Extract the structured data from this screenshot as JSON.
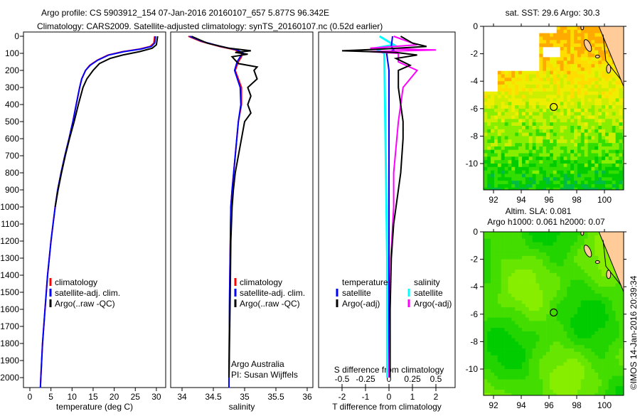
{
  "title": {
    "line1": "Argo profile: CS 5903912_154 07-Jan-2016 20160107_657 5.877S 96.342E",
    "line2": "Climatology: CARS2009. Satellite-adjusted climatology: synTS_20160107.nc (0.52d earlier)"
  },
  "credit": "©IMOS 14-Jan-2016 20:39:34",
  "colors": {
    "climatology": "#ff0000",
    "satellite": "#0000ff",
    "argo": "#000000",
    "s_satellite": "#00ffff",
    "s_argo": "#ff00ff",
    "land": "#ffcc99"
  },
  "chart_data": [
    {
      "type": "line",
      "name": "temperature-profile",
      "xlabel": "temperature (deg C)",
      "ylabel": "",
      "xticks": [
        "0",
        "5",
        "10",
        "15",
        "20",
        "25",
        "30"
      ],
      "yticks": [
        "0",
        "100",
        "200",
        "300",
        "400",
        "500",
        "600",
        "700",
        "800",
        "900",
        "1000",
        "1100",
        "1200",
        "1300",
        "1400",
        "1500",
        "1600",
        "1700",
        "1800",
        "1900",
        "2000"
      ],
      "legend": [
        "climatology",
        "satellite-adj. clim.",
        "Argo(..raw -QC)"
      ],
      "series": [
        {
          "name": "climatology",
          "points": [
            [
              0,
              29.6
            ],
            [
              40,
              29.4
            ],
            [
              60,
              28.5
            ],
            [
              75,
              26
            ],
            [
              90,
              22
            ],
            [
              110,
              18.5
            ],
            [
              140,
              16
            ],
            [
              170,
              14.2
            ],
            [
              200,
              13.2
            ],
            [
              250,
              12.3
            ],
            [
              300,
              11.8
            ],
            [
              400,
              11
            ],
            [
              500,
              10.2
            ],
            [
              600,
              9.3
            ],
            [
              700,
              8.3
            ],
            [
              800,
              7.4
            ],
            [
              900,
              6.6
            ],
            [
              1000,
              6
            ],
            [
              1100,
              5.5
            ],
            [
              1200,
              5
            ],
            [
              1300,
              4.6
            ],
            [
              1400,
              4.2
            ],
            [
              1600,
              3.6
            ],
            [
              1800,
              3
            ],
            [
              2000,
              2.6
            ],
            [
              2060,
              2.5
            ]
          ]
        },
        {
          "name": "satellite-adj. clim.",
          "points": [
            [
              0,
              29.8
            ],
            [
              40,
              29.6
            ],
            [
              60,
              28.8
            ],
            [
              75,
              26.3
            ],
            [
              90,
              22.3
            ],
            [
              110,
              18.7
            ],
            [
              140,
              16.1
            ],
            [
              170,
              14.3
            ],
            [
              200,
              13.2
            ],
            [
              250,
              12.3
            ],
            [
              300,
              11.8
            ],
            [
              400,
              11
            ],
            [
              500,
              10.2
            ],
            [
              600,
              9.3
            ],
            [
              700,
              8.3
            ],
            [
              800,
              7.4
            ],
            [
              900,
              6.6
            ],
            [
              1000,
              6
            ],
            [
              1100,
              5.5
            ],
            [
              1200,
              5
            ],
            [
              1300,
              4.6
            ],
            [
              1400,
              4.2
            ],
            [
              1600,
              3.6
            ],
            [
              1800,
              3
            ],
            [
              2000,
              2.6
            ],
            [
              2060,
              2.5
            ]
          ]
        },
        {
          "name": "Argo(..raw -QC)",
          "points": [
            [
              0,
              30.3
            ],
            [
              50,
              30
            ],
            [
              70,
              29
            ],
            [
              90,
              26
            ],
            [
              110,
              22
            ],
            [
              130,
              19
            ],
            [
              160,
              16.5
            ],
            [
              200,
              15
            ],
            [
              250,
              13.5
            ],
            [
              300,
              12.6
            ],
            [
              400,
              11.5
            ],
            [
              500,
              10.5
            ],
            [
              600,
              9.4
            ],
            [
              700,
              8.4
            ],
            [
              800,
              7.5
            ],
            [
              900,
              6.7
            ],
            [
              1000,
              6
            ]
          ]
        }
      ]
    },
    {
      "type": "line",
      "name": "salinity-profile",
      "xlabel": "salinity",
      "xticks": [
        "34",
        "34.5",
        "35",
        "35.5",
        "36"
      ],
      "legend": [
        "climatology",
        "satellite-adj. clim.",
        "Argo(..raw -QC)"
      ],
      "annotation": [
        "Argo Australia",
        "PI: Susan Wijffels"
      ],
      "series": [
        {
          "name": "climatology",
          "points": [
            [
              0,
              34.1
            ],
            [
              30,
              34.3
            ],
            [
              60,
              34.6
            ],
            [
              80,
              34.85
            ],
            [
              100,
              34.95
            ],
            [
              120,
              34.95
            ],
            [
              150,
              34.9
            ],
            [
              200,
              34.85
            ],
            [
              300,
              34.95
            ],
            [
              400,
              34.95
            ],
            [
              500,
              34.9
            ],
            [
              700,
              34.85
            ],
            [
              900,
              34.8
            ],
            [
              1000,
              34.78
            ],
            [
              1500,
              34.76
            ],
            [
              2000,
              34.75
            ],
            [
              2060,
              34.75
            ]
          ]
        },
        {
          "name": "satellite-adj. clim.",
          "points": [
            [
              0,
              34.12
            ],
            [
              30,
              34.32
            ],
            [
              60,
              34.62
            ],
            [
              80,
              34.88
            ],
            [
              100,
              34.98
            ],
            [
              120,
              34.93
            ],
            [
              150,
              34.88
            ],
            [
              200,
              34.84
            ],
            [
              300,
              34.93
            ],
            [
              400,
              34.94
            ],
            [
              500,
              34.9
            ],
            [
              700,
              34.85
            ],
            [
              900,
              34.8
            ],
            [
              1000,
              34.78
            ],
            [
              1500,
              34.76
            ],
            [
              2000,
              34.75
            ],
            [
              2060,
              34.75
            ]
          ]
        },
        {
          "name": "Argo(..raw -QC)",
          "points": [
            [
              0,
              34.15
            ],
            [
              40,
              34.4
            ],
            [
              70,
              34.75
            ],
            [
              85,
              35.1
            ],
            [
              95,
              34.85
            ],
            [
              105,
              35.05
            ],
            [
              120,
              34.8
            ],
            [
              160,
              34.9
            ],
            [
              180,
              35.2
            ],
            [
              200,
              35.15
            ],
            [
              250,
              35.2
            ],
            [
              300,
              35.05
            ],
            [
              350,
              35.1
            ],
            [
              400,
              35.05
            ],
            [
              450,
              35.1
            ],
            [
              500,
              35.0
            ],
            [
              600,
              34.95
            ],
            [
              700,
              34.9
            ],
            [
              800,
              34.85
            ],
            [
              900,
              34.82
            ],
            [
              1000,
              34.8
            ],
            [
              1200,
              34.78
            ],
            [
              1500,
              34.77
            ],
            [
              2000,
              34.75
            ]
          ]
        }
      ]
    },
    {
      "type": "line",
      "name": "difference-profile",
      "xlabel": "T difference from climatology",
      "xlabel_top": "S difference from climatology",
      "xticks": [
        "-2",
        "-1",
        "0",
        "1",
        "2"
      ],
      "xticks_top": [
        "-0.5",
        "-0.25",
        "0",
        "0.25",
        "0.5"
      ],
      "legend_headers": [
        "temperature",
        "salinity"
      ],
      "legend": [
        "satellite",
        "Argo(-adj)",
        "satellite",
        "Argo(-adj)"
      ],
      "series": [
        {
          "name": "T satellite",
          "points": [
            [
              0,
              0.15
            ],
            [
              60,
              0.1
            ],
            [
              80,
              0.2
            ],
            [
              100,
              -0.1
            ],
            [
              200,
              0
            ],
            [
              2000,
              0
            ]
          ]
        },
        {
          "name": "T Argo(-adj)",
          "points": [
            [
              0,
              0.5
            ],
            [
              40,
              1
            ],
            [
              60,
              1.6
            ],
            [
              75,
              -0.3
            ],
            [
              85,
              -2
            ],
            [
              95,
              0.3
            ],
            [
              110,
              1.2
            ],
            [
              130,
              0.3
            ],
            [
              170,
              0.9
            ],
            [
              200,
              0.4
            ],
            [
              300,
              0.4
            ],
            [
              400,
              0.5
            ],
            [
              500,
              0.6
            ],
            [
              600,
              0.6
            ],
            [
              800,
              0.5
            ],
            [
              1000,
              0.3
            ],
            [
              1100,
              0.2
            ],
            [
              1300,
              0.1
            ],
            [
              1600,
              0.05
            ],
            [
              2000,
              0.05
            ]
          ]
        },
        {
          "name": "S satellite",
          "points": [
            [
              0,
              -0.1
            ],
            [
              50,
              0.05
            ],
            [
              70,
              -0.15
            ],
            [
              100,
              -0.05
            ],
            [
              1300,
              -0.02
            ],
            [
              2000,
              -0.02
            ]
          ]
        },
        {
          "name": "S Argo(-adj)",
          "points": [
            [
              0,
              0.05
            ],
            [
              50,
              0.3
            ],
            [
              70,
              -0.2
            ],
            [
              80,
              0.5
            ],
            [
              90,
              -0.2
            ],
            [
              100,
              0.1
            ],
            [
              150,
              0.1
            ],
            [
              200,
              0.3
            ],
            [
              300,
              0.15
            ],
            [
              500,
              0.1
            ],
            [
              800,
              0.05
            ],
            [
              1000,
              0.05
            ],
            [
              1300,
              0.02
            ],
            [
              2000,
              0
            ]
          ]
        }
      ]
    },
    {
      "type": "heatmap",
      "name": "sst-map",
      "title": "sat. SST: 29.6 Argo: 30.3",
      "xticks": [
        "92",
        "94",
        "96",
        "98",
        "100"
      ],
      "yticks": [
        "0",
        "-2",
        "-4",
        "-6",
        "-8",
        "-10"
      ],
      "lon_range": [
        91.3,
        101.5
      ],
      "lat_range": [
        -11.9,
        0
      ],
      "argo_position": {
        "lon": 96.342,
        "lat": -5.877
      }
    },
    {
      "type": "heatmap",
      "name": "sla-map",
      "title": "Altim. SLA: 0.081",
      "subtitle": "Argo h1000: 0.061 h2000: 0.07",
      "xticks": [
        "92",
        "94",
        "96",
        "98",
        "100"
      ],
      "yticks": [
        "0",
        "-2",
        "-4",
        "-6",
        "-8",
        "-10"
      ],
      "lon_range": [
        91.3,
        101.5
      ],
      "lat_range": [
        -11.9,
        0
      ],
      "argo_position": {
        "lon": 96.342,
        "lat": -5.877
      }
    }
  ]
}
